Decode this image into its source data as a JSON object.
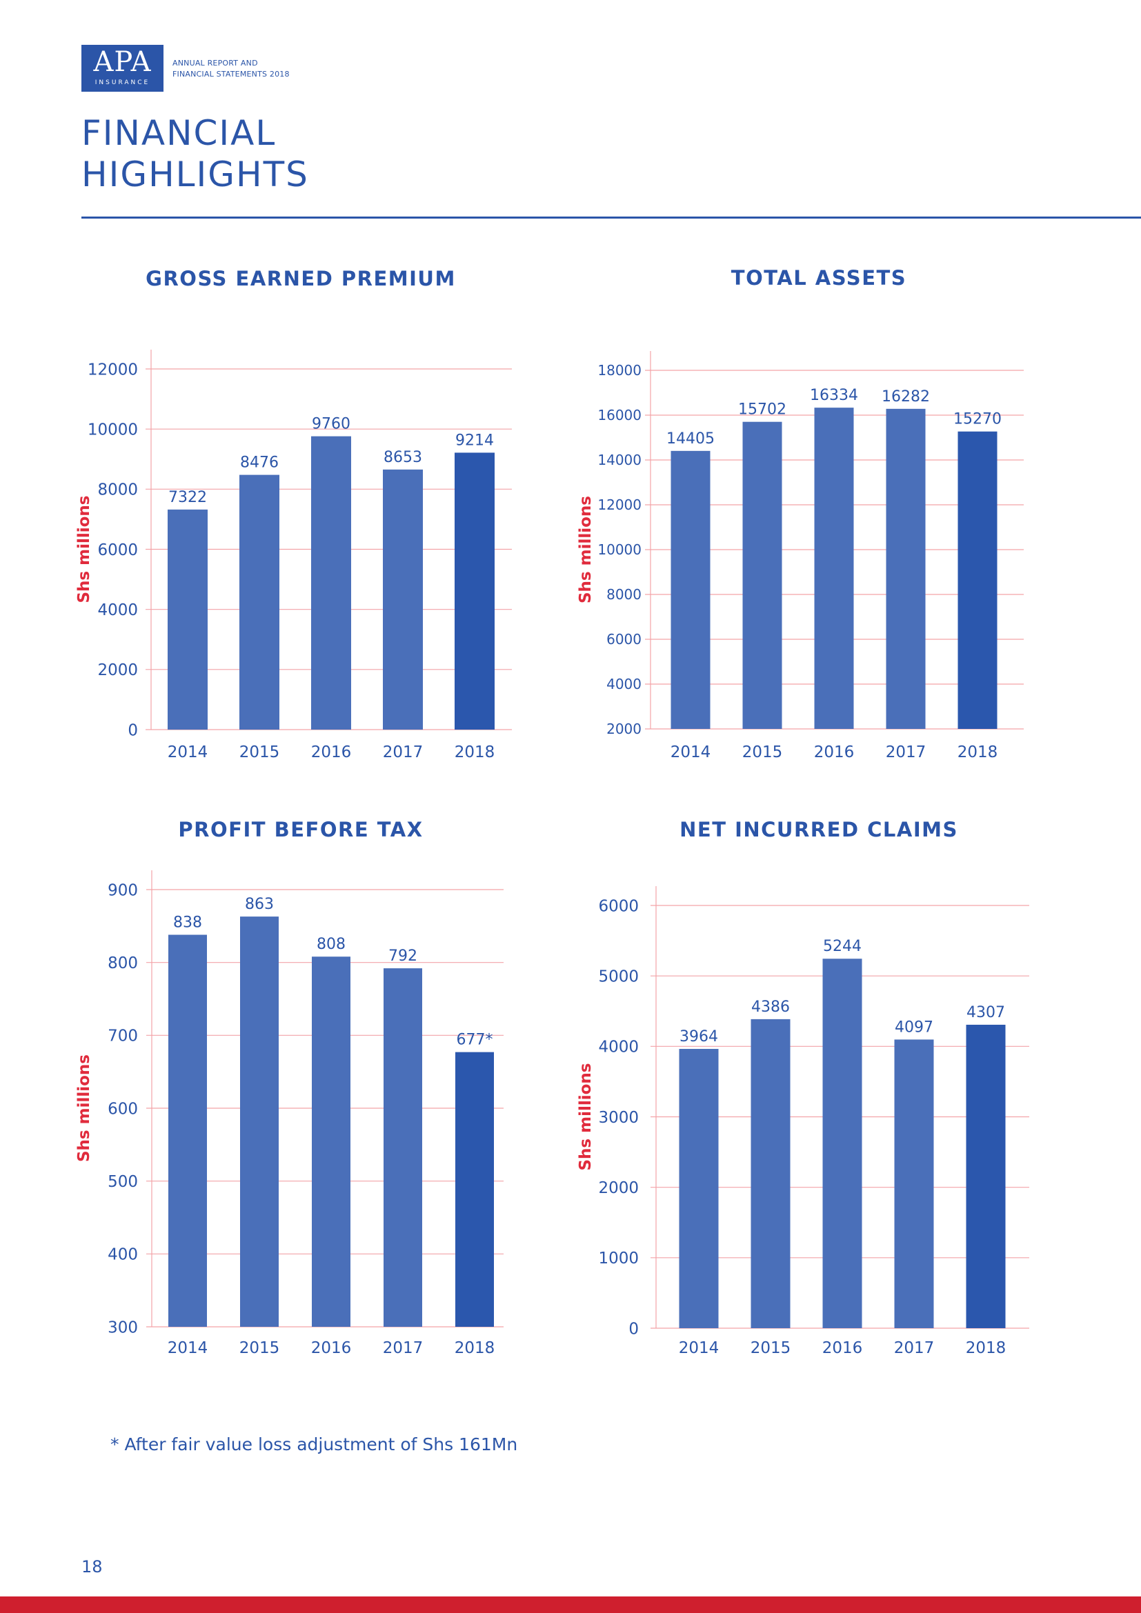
{
  "header": {
    "logo_mark": "APA",
    "logo_word": "INSURANCE",
    "report_line_1": "ANNUAL REPORT AND",
    "report_line_2": "FINANCIAL STATEMENTS 2018",
    "title_line_1": "FINANCIAL",
    "title_line_2": "HIGHLIGHTS"
  },
  "colors": {
    "brand_blue": "#2b55a8",
    "bar_blue": "#4a6fb9",
    "highlight_bar_blue": "#2b57ad",
    "grid_red": "#f3a3a8",
    "axis_label_red": "#e02b3c",
    "band_red": "#cf1f2e"
  },
  "chart_data": [
    {
      "type": "bar",
      "title": "GROSS EARNED PREMIUM",
      "ylabel": "Shs millions",
      "categories": [
        "2014",
        "2015",
        "2016",
        "2017",
        "2018"
      ],
      "values": [
        7322,
        8476,
        9760,
        8653,
        9214
      ],
      "value_labels": [
        "7322",
        "8476",
        "9760",
        "8653",
        "9214"
      ],
      "ylim": [
        0,
        12000
      ],
      "yticks": [
        0,
        2000,
        4000,
        6000,
        8000,
        10000,
        12000
      ],
      "highlight_index": 4,
      "grid": true
    },
    {
      "type": "bar",
      "title": "TOTAL ASSETS",
      "ylabel": "Shs millions",
      "categories": [
        "2014",
        "2015",
        "2016",
        "2017",
        "2018"
      ],
      "values": [
        14405,
        15702,
        16334,
        16282,
        15270
      ],
      "value_labels": [
        "14405",
        "15702",
        "16334",
        "16282",
        "15270"
      ],
      "ylim": [
        2000,
        18000
      ],
      "yticks": [
        2000,
        4000,
        6000,
        8000,
        10000,
        12000,
        14000,
        16000,
        18000
      ],
      "highlight_index": 4,
      "grid": true
    },
    {
      "type": "bar",
      "title": "PROFIT BEFORE TAX",
      "ylabel": "Shs millions",
      "categories": [
        "2014",
        "2015",
        "2016",
        "2017",
        "2018"
      ],
      "values": [
        838,
        863,
        808,
        792,
        677
      ],
      "value_labels": [
        "838",
        "863",
        "808",
        "792",
        "677*"
      ],
      "ylim": [
        300,
        900
      ],
      "yticks": [
        300,
        400,
        500,
        600,
        700,
        800,
        900
      ],
      "highlight_index": 4,
      "grid": true
    },
    {
      "type": "bar",
      "title": "NET INCURRED CLAIMS",
      "ylabel": "Shs millions",
      "categories": [
        "2014",
        "2015",
        "2016",
        "2017",
        "2018"
      ],
      "values": [
        3964,
        4386,
        5244,
        4097,
        4307
      ],
      "value_labels": [
        "3964",
        "4386",
        "5244",
        "4097",
        "4307"
      ],
      "ylim": [
        0,
        6000
      ],
      "yticks": [
        0,
        1000,
        2000,
        3000,
        4000,
        5000,
        6000
      ],
      "highlight_index": 4,
      "grid": true
    }
  ],
  "footnote": "* After fair value loss adjustment of Shs 161Mn",
  "page_number": "18"
}
